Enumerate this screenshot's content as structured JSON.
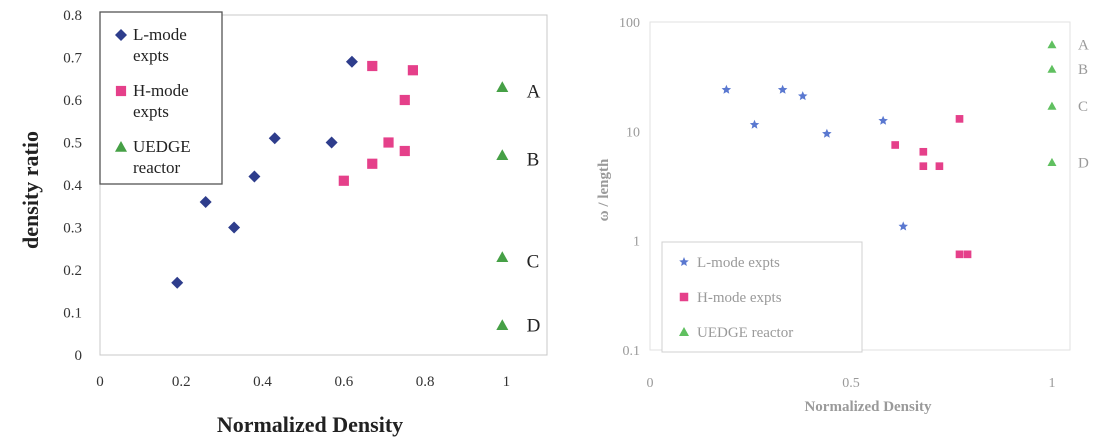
{
  "chart_data": [
    {
      "type": "scatter",
      "xlabel": "Normalized Density",
      "ylabel": "density ratio",
      "xlim": [
        0,
        1.1
      ],
      "ylim": [
        0,
        0.8
      ],
      "xticks": [
        "0",
        "0.2",
        "0.4",
        "0.6",
        "0.8",
        "1"
      ],
      "yticks": [
        "0",
        "0.1",
        "0.2",
        "0.3",
        "0.4",
        "0.5",
        "0.6",
        "0.7",
        "0.8"
      ],
      "grid": false,
      "legend_position": "top-left",
      "series": [
        {
          "name": "L-mode expts",
          "marker": "diamond",
          "color": "#2e3d8c",
          "points": [
            [
              0.19,
              0.17
            ],
            [
              0.26,
              0.36
            ],
            [
              0.33,
              0.3
            ],
            [
              0.38,
              0.42
            ],
            [
              0.43,
              0.51
            ],
            [
              0.57,
              0.5
            ],
            [
              0.62,
              0.69
            ]
          ]
        },
        {
          "name": "H-mode expts",
          "marker": "square",
          "color": "#e5408a",
          "points": [
            [
              0.6,
              0.41
            ],
            [
              0.67,
              0.68
            ],
            [
              0.67,
              0.45
            ],
            [
              0.71,
              0.5
            ],
            [
              0.75,
              0.6
            ],
            [
              0.75,
              0.48
            ],
            [
              0.77,
              0.67
            ]
          ]
        },
        {
          "name": "UEDGE reactor",
          "marker": "triangle",
          "color": "#46a046",
          "points": [
            [
              0.99,
              0.63
            ],
            [
              0.99,
              0.47
            ],
            [
              0.99,
              0.23
            ],
            [
              0.99,
              0.07
            ]
          ]
        }
      ],
      "annotations": [
        {
          "text": "A",
          "x": 1.05,
          "y": 0.62
        },
        {
          "text": "B",
          "x": 1.05,
          "y": 0.46
        },
        {
          "text": "C",
          "x": 1.05,
          "y": 0.22
        },
        {
          "text": "D",
          "x": 1.05,
          "y": 0.07
        }
      ]
    },
    {
      "type": "scatter",
      "xlabel": "Normalized Density",
      "ylabel": "ω / length",
      "xlim": [
        0,
        1.02
      ],
      "ylim": [
        0.1,
        100
      ],
      "yscale": "log",
      "xticks": [
        "0",
        "0.5",
        "1"
      ],
      "yticks": [
        "0.1",
        "1",
        "10",
        "100"
      ],
      "grid": false,
      "legend_position": "bottom-left",
      "series": [
        {
          "name": "L-mode expts",
          "marker": "star",
          "color": "#5a78d0",
          "points": [
            [
              0.19,
              24
            ],
            [
              0.26,
              11.5
            ],
            [
              0.33,
              24
            ],
            [
              0.38,
              21
            ],
            [
              0.44,
              9.5
            ],
            [
              0.58,
              12.5
            ],
            [
              0.63,
              1.35
            ]
          ]
        },
        {
          "name": "H-mode expts",
          "marker": "square",
          "color": "#e5408a",
          "points": [
            [
              0.61,
              7.5
            ],
            [
              0.68,
              6.5
            ],
            [
              0.68,
              4.8
            ],
            [
              0.72,
              4.8
            ],
            [
              0.77,
              13
            ],
            [
              0.77,
              0.75
            ],
            [
              0.79,
              0.75
            ]
          ]
        },
        {
          "name": "UEDGE reactor",
          "marker": "triangle",
          "color": "#60c060",
          "points": [
            [
              1.0,
              62
            ],
            [
              1.0,
              37
            ],
            [
              1.0,
              17
            ],
            [
              1.0,
              5.2
            ]
          ]
        }
      ],
      "annotations": [
        {
          "text": "A",
          "x": 1.05,
          "y": 62
        },
        {
          "text": "B",
          "x": 1.05,
          "y": 37
        },
        {
          "text": "C",
          "x": 1.05,
          "y": 17
        },
        {
          "text": "D",
          "x": 1.05,
          "y": 5.2
        }
      ]
    }
  ]
}
